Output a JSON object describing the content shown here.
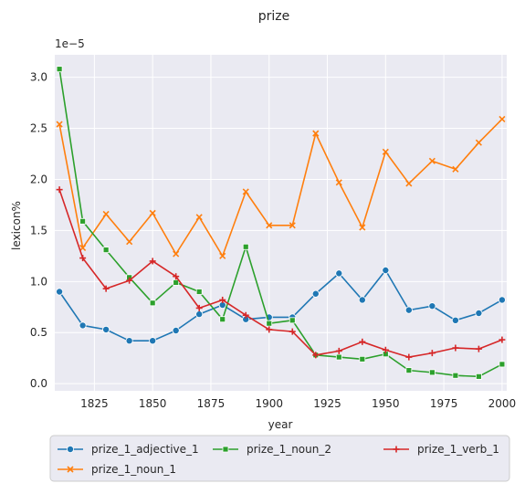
{
  "chart_data": {
    "type": "line",
    "title": "prize",
    "xlabel": "year",
    "ylabel": "lexicon%",
    "y_scale_label": "1e−5",
    "xlim": [
      1808,
      2002
    ],
    "ylim": [
      -0.07,
      3.22
    ],
    "x_ticks": [
      1825,
      1850,
      1875,
      1900,
      1925,
      1950,
      1975,
      2000
    ],
    "x_tick_labels": [
      "1825",
      "1850",
      "1875",
      "1900",
      "1925",
      "1950",
      "1975",
      "2000"
    ],
    "y_ticks": [
      0.0,
      0.5,
      1.0,
      1.5,
      2.0,
      2.5,
      3.0
    ],
    "y_tick_labels": [
      "0.0",
      "0.5",
      "1.0",
      "1.5",
      "2.0",
      "2.5",
      "3.0"
    ],
    "grid": true,
    "legend_position": "bottom",
    "x": [
      1810,
      1820,
      1830,
      1840,
      1850,
      1860,
      1870,
      1880,
      1890,
      1900,
      1910,
      1920,
      1930,
      1940,
      1950,
      1960,
      1970,
      1980,
      1990,
      2000
    ],
    "series": [
      {
        "name": "prize_1_adjective_1",
        "color": "#1f77b4",
        "marker": "circle",
        "values": [
          0.9,
          0.57,
          0.53,
          0.42,
          0.42,
          0.52,
          0.68,
          0.77,
          0.63,
          0.65,
          0.65,
          0.88,
          1.08,
          0.82,
          1.11,
          0.72,
          0.76,
          0.62,
          0.69,
          0.82
        ]
      },
      {
        "name": "prize_1_noun_1",
        "color": "#ff7f0e",
        "marker": "x",
        "values": [
          2.54,
          1.33,
          1.66,
          1.39,
          1.67,
          1.27,
          1.63,
          1.25,
          1.88,
          1.55,
          1.55,
          2.45,
          1.97,
          1.53,
          2.27,
          1.96,
          2.18,
          2.1,
          2.36,
          2.59
        ]
      },
      {
        "name": "prize_1_noun_2",
        "color": "#2ca02c",
        "marker": "square",
        "values": [
          3.08,
          1.59,
          1.31,
          1.04,
          0.79,
          0.99,
          0.9,
          0.63,
          1.34,
          0.59,
          0.62,
          0.28,
          0.26,
          0.24,
          0.29,
          0.13,
          0.11,
          0.08,
          0.07,
          0.19
        ]
      },
      {
        "name": "prize_1_verb_1",
        "color": "#d62728",
        "marker": "plus",
        "values": [
          1.9,
          1.23,
          0.93,
          1.01,
          1.2,
          1.05,
          0.74,
          0.82,
          0.67,
          0.53,
          0.51,
          0.28,
          0.32,
          0.41,
          0.33,
          0.26,
          0.3,
          0.35,
          0.34,
          0.43
        ]
      }
    ]
  }
}
